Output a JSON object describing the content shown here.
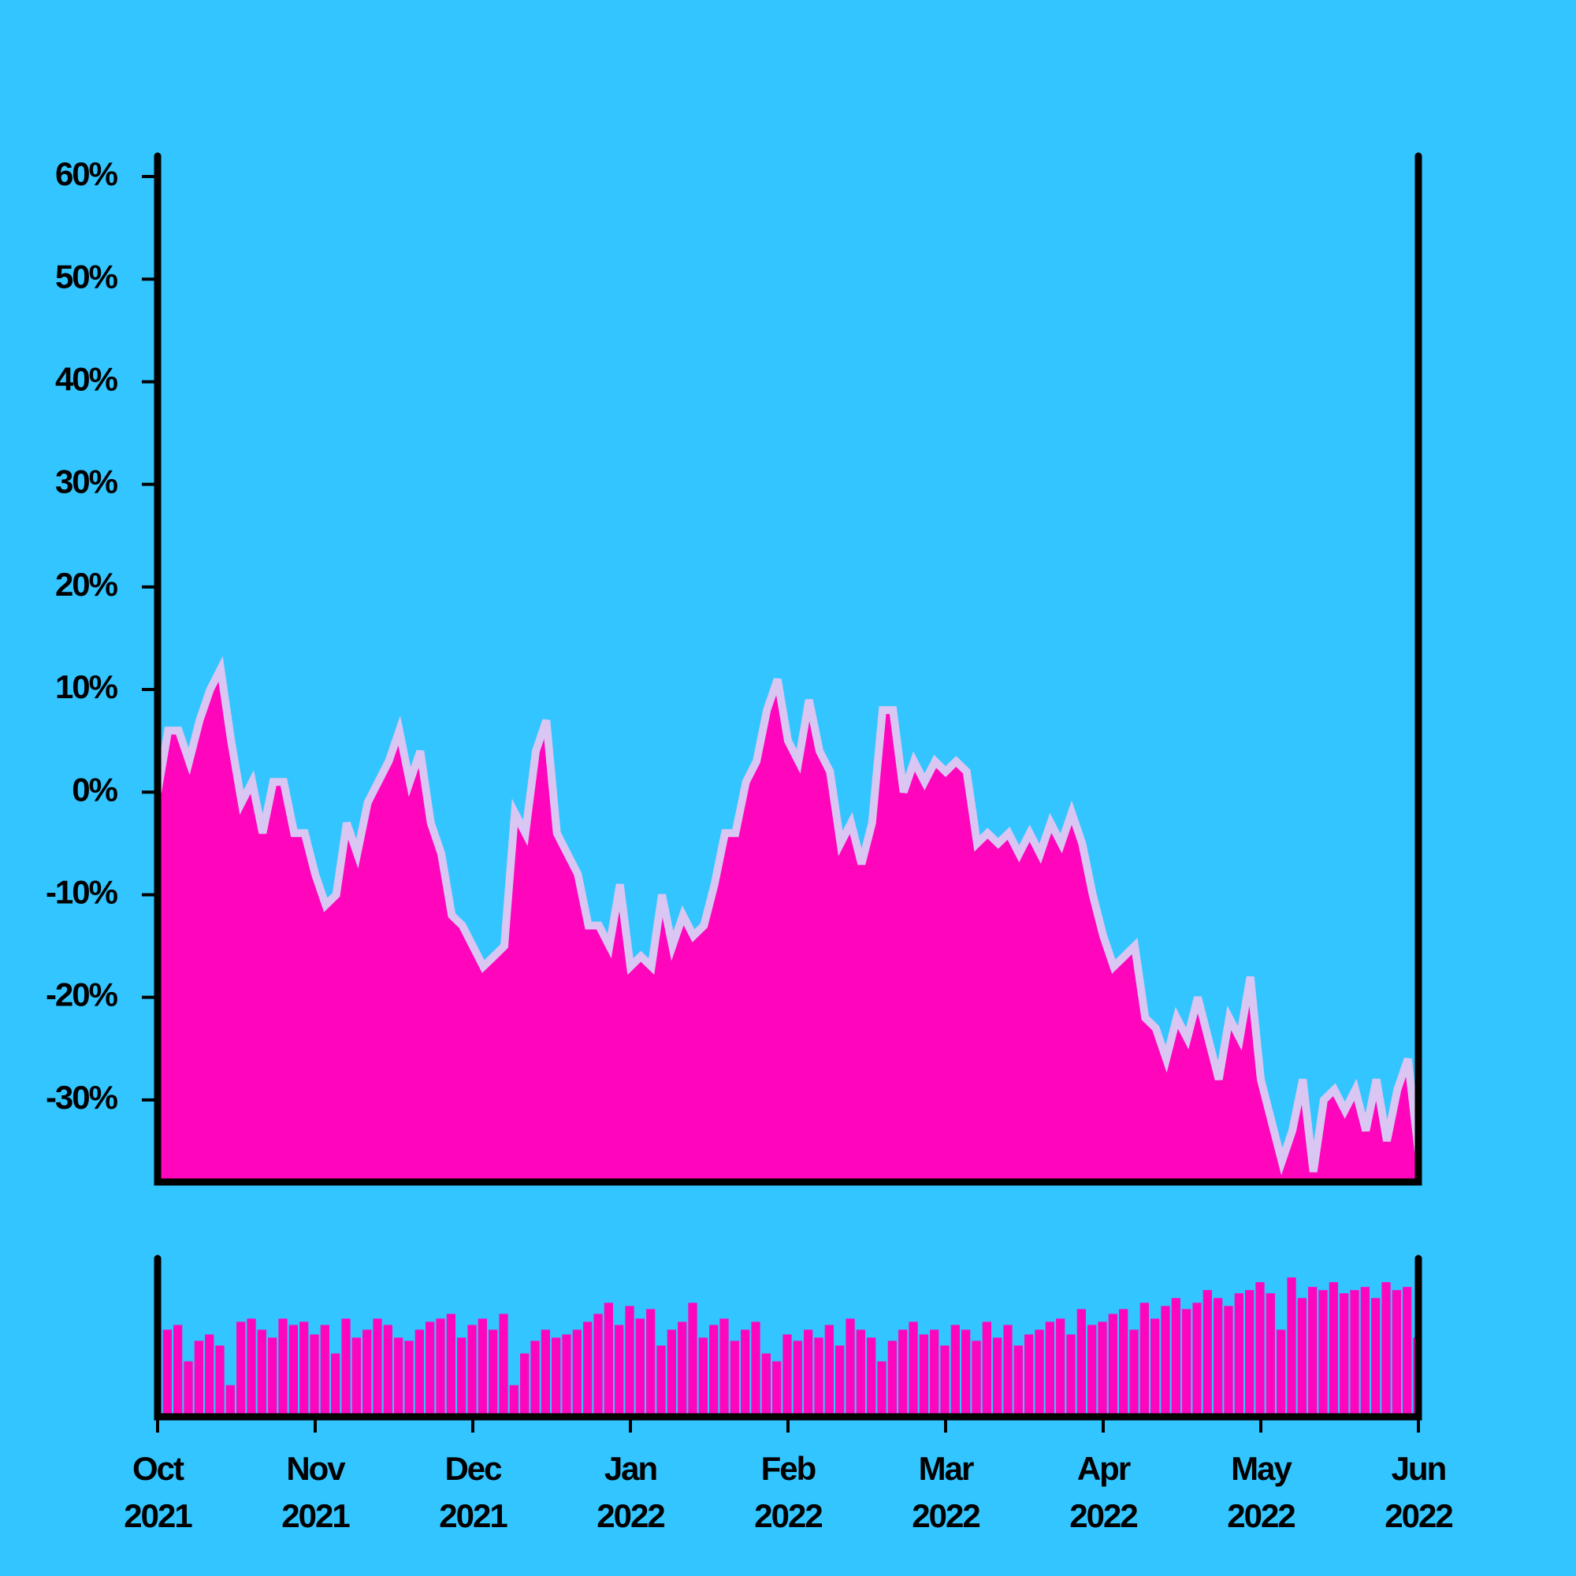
{
  "chart_data": [
    {
      "type": "area",
      "color": "#ff05bc",
      "line_color": "#d9c6f2",
      "xlim": [
        "2021-10",
        "2022-06"
      ],
      "ylim": [
        -38,
        62
      ],
      "yticks": [
        {
          "value": 60,
          "label": "60%"
        },
        {
          "value": 50,
          "label": "50%"
        },
        {
          "value": 40,
          "label": "40%"
        },
        {
          "value": 30,
          "label": "30%"
        },
        {
          "value": 20,
          "label": "20%"
        },
        {
          "value": 10,
          "label": "10%"
        },
        {
          "value": 0,
          "label": "0%"
        },
        {
          "value": -10,
          "label": "-10%"
        },
        {
          "value": -20,
          "label": "-20%"
        },
        {
          "value": -30,
          "label": "-30%"
        }
      ],
      "values": [
        0,
        6,
        6,
        3,
        7,
        10,
        12,
        5,
        -1,
        1,
        -4,
        1,
        1,
        -4,
        -4,
        -8,
        -11,
        -10,
        -3,
        -6,
        -1,
        1,
        3,
        6,
        1,
        4,
        -3,
        -6,
        -12,
        -13,
        -15,
        -17,
        -16,
        -15,
        -2,
        -4,
        4,
        7,
        -4,
        -6,
        -8,
        -13,
        -13,
        -15,
        -9,
        -17,
        -16,
        -17,
        -10,
        -15,
        -12,
        -14,
        -13,
        -9,
        -4,
        -4,
        1,
        3,
        8,
        11,
        5,
        3,
        9,
        4,
        2,
        -5,
        -3,
        -7,
        -3,
        8,
        8,
        0,
        3,
        1,
        3,
        2,
        3,
        2,
        -5,
        -4,
        -5,
        -4,
        -6,
        -4,
        -6,
        -3,
        -5,
        -2,
        -5,
        -10,
        -14,
        -17,
        -16,
        -15,
        -22,
        -23,
        -26,
        -22,
        -24,
        -20,
        -24,
        -28,
        -22,
        -24,
        -18,
        -28,
        -32,
        -36,
        -33,
        -28,
        -37,
        -30,
        -29,
        -31,
        -29,
        -33,
        -28,
        -34,
        -29,
        -26,
        -35
      ]
    },
    {
      "type": "bar",
      "color": "#ff05bc",
      "xlim": [
        "2021-10",
        "2022-06"
      ],
      "xticks": [
        {
          "value": "2021-10",
          "label": "Oct\n2021"
        },
        {
          "value": "2021-11",
          "label": "Nov\n2021"
        },
        {
          "value": "2021-12",
          "label": "Dec\n2021"
        },
        {
          "value": "2022-01",
          "label": "Jan\n2022"
        },
        {
          "value": "2022-02",
          "label": "Feb\n2022"
        },
        {
          "value": "2022-03",
          "label": "Mar\n2022"
        },
        {
          "value": "2022-04",
          "label": "Apr\n2022"
        },
        {
          "value": "2022-05",
          "label": "May\n2022"
        },
        {
          "value": "2022-06",
          "label": "Jun\n2022"
        }
      ],
      "ylim": [
        0,
        100
      ],
      "values": [
        60,
        55,
        58,
        35,
        48,
        52,
        45,
        20,
        60,
        62,
        55,
        50,
        62,
        58,
        60,
        52,
        58,
        40,
        62,
        50,
        55,
        62,
        58,
        50,
        48,
        55,
        60,
        62,
        65,
        50,
        58,
        62,
        55,
        65,
        20,
        40,
        48,
        55,
        50,
        52,
        55,
        60,
        65,
        72,
        58,
        70,
        62,
        68,
        45,
        55,
        60,
        72,
        50,
        58,
        62,
        48,
        55,
        60,
        40,
        35,
        52,
        48,
        55,
        50,
        58,
        45,
        62,
        55,
        50,
        35,
        48,
        55,
        60,
        52,
        55,
        45,
        58,
        55,
        48,
        60,
        50,
        58,
        45,
        52,
        55,
        60,
        62,
        52,
        68,
        58,
        60,
        65,
        68,
        55,
        72,
        62,
        70,
        75,
        68,
        72,
        80,
        75,
        70,
        78,
        80,
        85,
        78,
        55,
        88,
        75,
        82,
        80,
        85,
        78,
        80,
        82,
        75,
        85,
        80,
        82,
        50
      ]
    }
  ]
}
